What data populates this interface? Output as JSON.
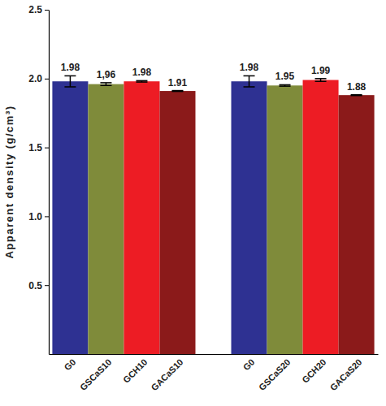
{
  "chart_data": {
    "type": "bar",
    "y_label": "Apparent density (g/cm³)",
    "categories": [
      "G0",
      "GSCaS10",
      "GCH10",
      "GACaS10",
      null,
      "G0",
      "GSCaS20",
      "GCH20",
      "GACaS20"
    ],
    "values": [
      1.98,
      1.96,
      1.98,
      1.91,
      null,
      1.98,
      1.95,
      1.99,
      1.88
    ],
    "value_labels": [
      "1.98",
      "1,96",
      "1.98",
      "1.91",
      null,
      "1.98",
      "1.95",
      "1.99",
      "1.88"
    ],
    "errors": [
      0.04,
      0.01,
      0.005,
      0.003,
      null,
      0.04,
      0.005,
      0.01,
      0.003
    ],
    "colors": [
      "#2e3192",
      "#7f8b3a",
      "#ed1c24",
      "#8b1a1a",
      null,
      "#2e3192",
      "#7f8b3a",
      "#ed1c24",
      "#8b1a1a"
    ],
    "ylim": [
      0,
      2.5
    ],
    "yticks": [
      0.5,
      {
        "value": 1,
        "label": "1.0"
      },
      1.5,
      {
        "value": 2,
        "label": "2.0"
      },
      2.5
    ],
    "data_labels": true,
    "grid": false
  }
}
